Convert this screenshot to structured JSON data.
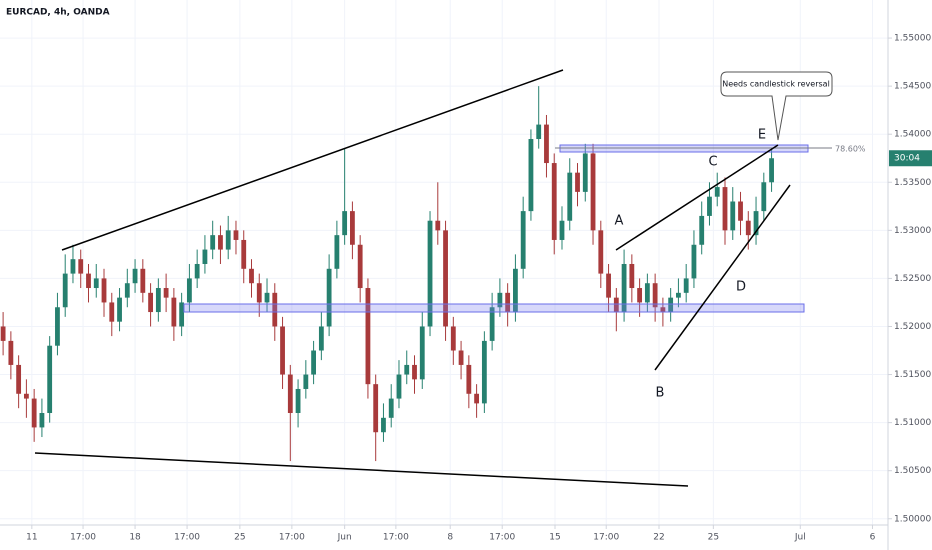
{
  "chart_data": {
    "type": "candlestick",
    "title": "EURCAD, 4h, OANDA",
    "up_color": "#26806f",
    "down_color": "#a83a3b",
    "grid": true,
    "xlim": [
      -0.4,
      114
    ],
    "xticks": [
      {
        "value": 3.7,
        "label": "11"
      },
      {
        "value": 10.3,
        "label": "17:00"
      },
      {
        "value": 17,
        "label": "18"
      },
      {
        "value": 23.7,
        "label": "17:00"
      },
      {
        "value": 30.5,
        "label": "25"
      },
      {
        "value": 37.2,
        "label": "17:00"
      },
      {
        "value": 44,
        "label": "Jun"
      },
      {
        "value": 50.6,
        "label": "17:00"
      },
      {
        "value": 57.6,
        "label": "8"
      },
      {
        "value": 64.3,
        "label": "17:00"
      },
      {
        "value": 71.1,
        "label": "15"
      },
      {
        "value": 77.7,
        "label": "17:00"
      },
      {
        "value": 84.5,
        "label": "22"
      },
      {
        "value": 91.5,
        "label": "25"
      },
      {
        "value": 102.7,
        "label": "Jul"
      },
      {
        "value": 112,
        "label": "6"
      }
    ],
    "ylim": [
      1.49935,
      1.55396
    ],
    "yticks": [
      {
        "value": 1.5,
        "label": "1.50000"
      },
      {
        "value": 1.505,
        "label": "1.50500"
      },
      {
        "value": 1.51,
        "label": "1.51000"
      },
      {
        "value": 1.515,
        "label": "1.51500"
      },
      {
        "value": 1.52,
        "label": "1.52000"
      },
      {
        "value": 1.525,
        "label": "1.52500"
      },
      {
        "value": 1.53,
        "label": "1.53000"
      },
      {
        "value": 1.535,
        "label": "1.53500"
      },
      {
        "value": 1.54,
        "label": "1.54000"
      },
      {
        "value": 1.545,
        "label": "1.54500"
      },
      {
        "value": 1.55,
        "label": "1.55000"
      }
    ],
    "open": [
      1.52,
      1.5185,
      1.516,
      1.513,
      1.5125,
      1.5095,
      1.511,
      1.518,
      1.522,
      1.5255,
      1.527,
      1.5255,
      1.524,
      1.525,
      1.5225,
      1.5205,
      1.523,
      1.5245,
      1.526,
      1.5235,
      1.5215,
      1.524,
      1.523,
      1.52,
      1.5225,
      1.525,
      1.5265,
      1.528,
      1.5295,
      1.528,
      1.53,
      1.529,
      1.526,
      1.5245,
      1.5225,
      1.5235,
      1.52,
      1.515,
      1.511,
      1.5135,
      1.515,
      1.5175,
      1.52,
      1.526,
      1.5295,
      1.532,
      1.5285,
      1.524,
      1.514,
      1.509,
      1.5105,
      1.5125,
      1.515,
      1.516,
      1.5145,
      1.52,
      1.531,
      1.53,
      1.52,
      1.5175,
      1.516,
      1.513,
      1.512,
      1.5185,
      1.522,
      1.5235,
      1.5215,
      1.526,
      1.532,
      1.5395,
      1.541,
      1.537,
      1.529,
      1.531,
      1.536,
      1.534,
      1.538,
      1.53,
      1.5255,
      1.523,
      1.5215,
      1.5265,
      1.524,
      1.5225,
      1.5245,
      1.522,
      1.5215,
      1.523,
      1.5235,
      1.525,
      1.5285,
      1.5315,
      1.5335,
      1.5345,
      1.53,
      1.533,
      1.531,
      1.5295,
      1.532,
      1.535
    ],
    "high": [
      1.5215,
      1.5195,
      1.517,
      1.5145,
      1.5135,
      1.5125,
      1.519,
      1.5235,
      1.5275,
      1.5285,
      1.528,
      1.5265,
      1.5265,
      1.526,
      1.5235,
      1.524,
      1.526,
      1.527,
      1.527,
      1.5245,
      1.525,
      1.5255,
      1.524,
      1.5235,
      1.5265,
      1.528,
      1.5295,
      1.531,
      1.5305,
      1.5315,
      1.531,
      1.53,
      1.527,
      1.5255,
      1.525,
      1.5245,
      1.521,
      1.516,
      1.5145,
      1.5165,
      1.5185,
      1.5215,
      1.5275,
      1.531,
      1.5385,
      1.533,
      1.5295,
      1.525,
      1.515,
      1.512,
      1.514,
      1.5165,
      1.5175,
      1.517,
      1.5215,
      1.532,
      1.535,
      1.531,
      1.521,
      1.5185,
      1.517,
      1.514,
      1.5195,
      1.5235,
      1.525,
      1.5245,
      1.5275,
      1.5335,
      1.5405,
      1.545,
      1.542,
      1.538,
      1.5325,
      1.5375,
      1.537,
      1.539,
      1.539,
      1.531,
      1.5265,
      1.524,
      1.528,
      1.5275,
      1.525,
      1.5255,
      1.5255,
      1.523,
      1.524,
      1.525,
      1.5265,
      1.53,
      1.533,
      1.535,
      1.536,
      1.5355,
      1.5345,
      1.534,
      1.532,
      1.5335,
      1.536,
      1.5385
    ],
    "low": [
      1.517,
      1.5145,
      1.5115,
      1.5105,
      1.508,
      1.5085,
      1.51,
      1.517,
      1.521,
      1.5245,
      1.524,
      1.5225,
      1.523,
      1.521,
      1.519,
      1.5195,
      1.522,
      1.5235,
      1.5225,
      1.52,
      1.5205,
      1.5215,
      1.5185,
      1.519,
      1.5215,
      1.524,
      1.5255,
      1.527,
      1.5265,
      1.527,
      1.5275,
      1.5245,
      1.523,
      1.521,
      1.5215,
      1.5185,
      1.5135,
      1.506,
      1.5095,
      1.5125,
      1.514,
      1.5165,
      1.519,
      1.525,
      1.5285,
      1.527,
      1.5225,
      1.5125,
      1.506,
      1.508,
      1.5095,
      1.5115,
      1.514,
      1.513,
      1.5135,
      1.519,
      1.5285,
      1.5185,
      1.516,
      1.5145,
      1.5115,
      1.5105,
      1.511,
      1.5175,
      1.521,
      1.52,
      1.5205,
      1.525,
      1.531,
      1.5385,
      1.5355,
      1.5275,
      1.528,
      1.53,
      1.5325,
      1.533,
      1.5285,
      1.524,
      1.5215,
      1.5195,
      1.5205,
      1.5225,
      1.521,
      1.5215,
      1.5205,
      1.52,
      1.5205,
      1.522,
      1.5225,
      1.524,
      1.5275,
      1.5305,
      1.5325,
      1.5285,
      1.529,
      1.5295,
      1.528,
      1.5285,
      1.531,
      1.534
    ],
    "close": [
      1.5185,
      1.516,
      1.513,
      1.5125,
      1.5095,
      1.511,
      1.518,
      1.522,
      1.5255,
      1.527,
      1.5255,
      1.524,
      1.525,
      1.5225,
      1.5205,
      1.523,
      1.5245,
      1.526,
      1.5235,
      1.5215,
      1.524,
      1.523,
      1.52,
      1.5225,
      1.525,
      1.5265,
      1.528,
      1.5295,
      1.528,
      1.53,
      1.529,
      1.526,
      1.5245,
      1.5225,
      1.5235,
      1.52,
      1.515,
      1.511,
      1.5135,
      1.515,
      1.5175,
      1.52,
      1.526,
      1.5295,
      1.532,
      1.5285,
      1.524,
      1.514,
      1.509,
      1.5105,
      1.5125,
      1.515,
      1.516,
      1.5145,
      1.52,
      1.531,
      1.53,
      1.52,
      1.5175,
      1.516,
      1.513,
      1.512,
      1.5185,
      1.522,
      1.5235,
      1.5215,
      1.526,
      1.532,
      1.5395,
      1.541,
      1.537,
      1.529,
      1.531,
      1.536,
      1.534,
      1.538,
      1.53,
      1.5255,
      1.523,
      1.5215,
      1.5265,
      1.524,
      1.5225,
      1.5245,
      1.522,
      1.5215,
      1.523,
      1.5235,
      1.525,
      1.5285,
      1.5315,
      1.5335,
      1.5345,
      1.53,
      1.533,
      1.531,
      1.5295,
      1.532,
      1.535,
      1.5375
    ],
    "annotations": {
      "fib": "78.60%",
      "callout": "Needs candlestick reversal",
      "timer": "30:04",
      "a": "A",
      "b": "B",
      "c": "C",
      "d": "D",
      "e": "E"
    }
  }
}
